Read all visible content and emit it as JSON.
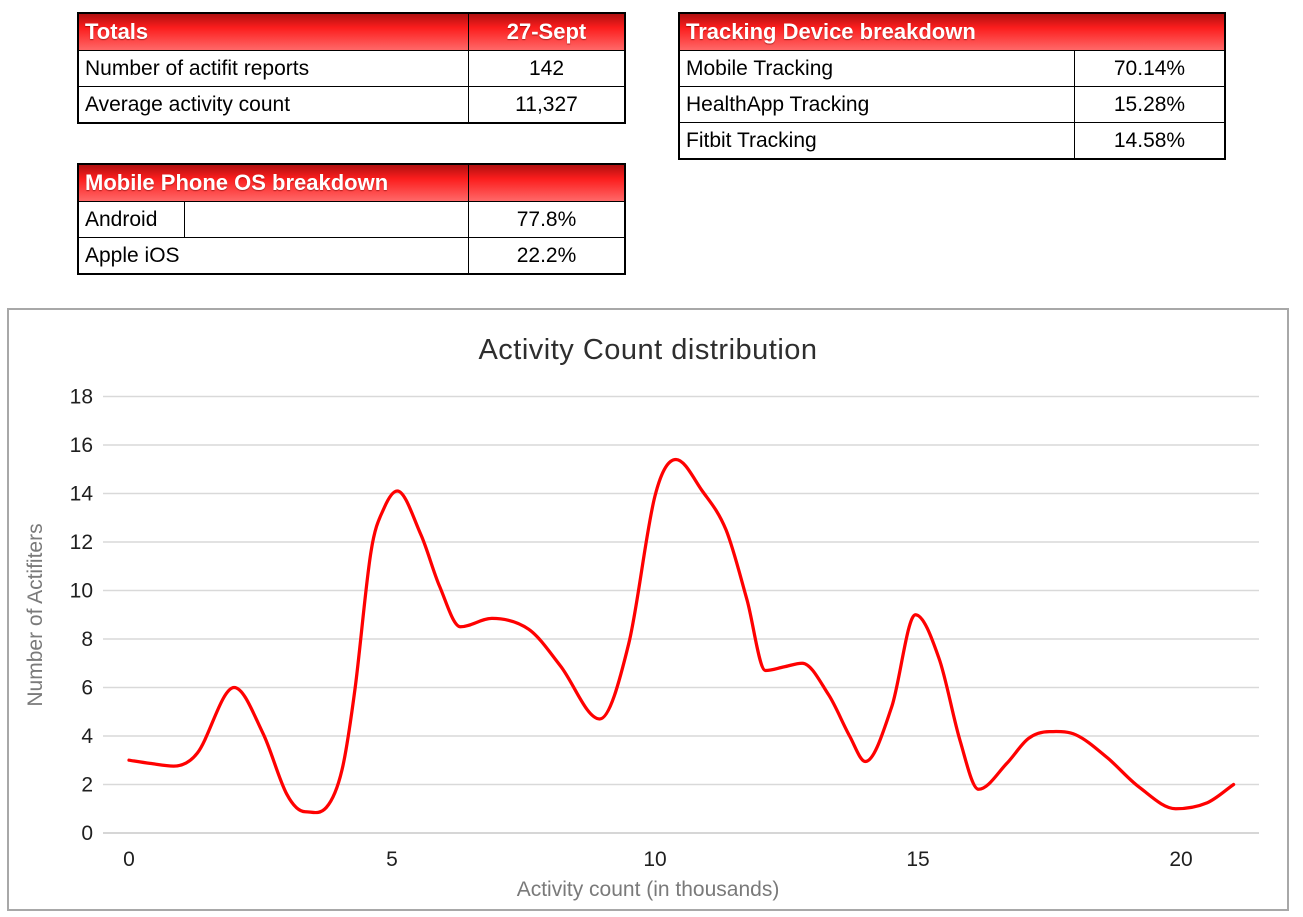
{
  "tables": {
    "totals": {
      "header": {
        "title": "Totals",
        "value": "27-Sept"
      },
      "rows": [
        {
          "label": "Number of actifit reports",
          "value": "142"
        },
        {
          "label": "Average activity count",
          "value": "11,327"
        }
      ]
    },
    "tracking": {
      "header": {
        "title": "Tracking Device breakdown"
      },
      "rows": [
        {
          "label": "Mobile Tracking",
          "value": "70.14%"
        },
        {
          "label": "HealthApp Tracking",
          "value": "15.28%"
        },
        {
          "label": "Fitbit Tracking",
          "value": "14.58%"
        }
      ]
    },
    "os": {
      "header": {
        "title": "Mobile Phone OS breakdown",
        "value": ""
      },
      "rows": [
        {
          "label": "Android",
          "value": "77.8%"
        },
        {
          "label": "Apple iOS",
          "value": "22.2%"
        }
      ]
    }
  },
  "colors": {
    "header_red_top": "#b01010",
    "header_red_mid": "#fb1d1d",
    "header_red_bottom": "#ff6868",
    "table_border": "#000000",
    "chart_border": "#a8a8a8"
  },
  "chart_data": {
    "type": "line",
    "title": "Activity Count distribution",
    "xlabel": "Activity count (in thousands)",
    "ylabel": "Number of Actifiters",
    "xlim": [
      0,
      21
    ],
    "ylim": [
      0,
      18
    ],
    "xticks": [
      0,
      5,
      10,
      15,
      20
    ],
    "yticks": [
      0,
      2,
      4,
      6,
      8,
      10,
      12,
      14,
      16,
      18
    ],
    "grid": true,
    "legend": "none",
    "line_color": "#fe0101",
    "grid_color": "#d9d9d9",
    "baseline_color": "#c8c8c8",
    "tick_text_color": "#1f1f1f",
    "points": [
      [
        0.0,
        3.0
      ],
      [
        0.4,
        2.87
      ],
      [
        0.85,
        2.76
      ],
      [
        1.3,
        3.3
      ],
      [
        2.0,
        6.0
      ],
      [
        2.55,
        4.1
      ],
      [
        3.0,
        1.6
      ],
      [
        3.35,
        0.88
      ],
      [
        3.75,
        1.05
      ],
      [
        4.05,
        2.6
      ],
      [
        4.3,
        6.0
      ],
      [
        4.6,
        11.6
      ],
      [
        4.85,
        13.4
      ],
      [
        5.1,
        14.1
      ],
      [
        5.55,
        12.3
      ],
      [
        5.9,
        10.2
      ],
      [
        6.3,
        8.5
      ],
      [
        6.9,
        8.85
      ],
      [
        7.6,
        8.4
      ],
      [
        8.2,
        6.9
      ],
      [
        8.95,
        4.7
      ],
      [
        9.5,
        7.8
      ],
      [
        10.0,
        13.9
      ],
      [
        10.4,
        15.4
      ],
      [
        10.9,
        14.1
      ],
      [
        11.35,
        12.5
      ],
      [
        11.75,
        9.6
      ],
      [
        12.1,
        6.7
      ],
      [
        12.45,
        6.85
      ],
      [
        12.8,
        7.0
      ],
      [
        13.3,
        5.7
      ],
      [
        13.7,
        4.0
      ],
      [
        14.0,
        2.95
      ],
      [
        14.5,
        5.2
      ],
      [
        14.95,
        9.0
      ],
      [
        15.4,
        7.2
      ],
      [
        15.8,
        3.8
      ],
      [
        16.15,
        1.8
      ],
      [
        16.7,
        2.9
      ],
      [
        17.1,
        3.9
      ],
      [
        17.5,
        4.18
      ],
      [
        18.0,
        4.05
      ],
      [
        18.6,
        3.1
      ],
      [
        19.2,
        1.9
      ],
      [
        19.9,
        1.0
      ],
      [
        20.5,
        1.25
      ],
      [
        21.0,
        2.0
      ]
    ]
  }
}
